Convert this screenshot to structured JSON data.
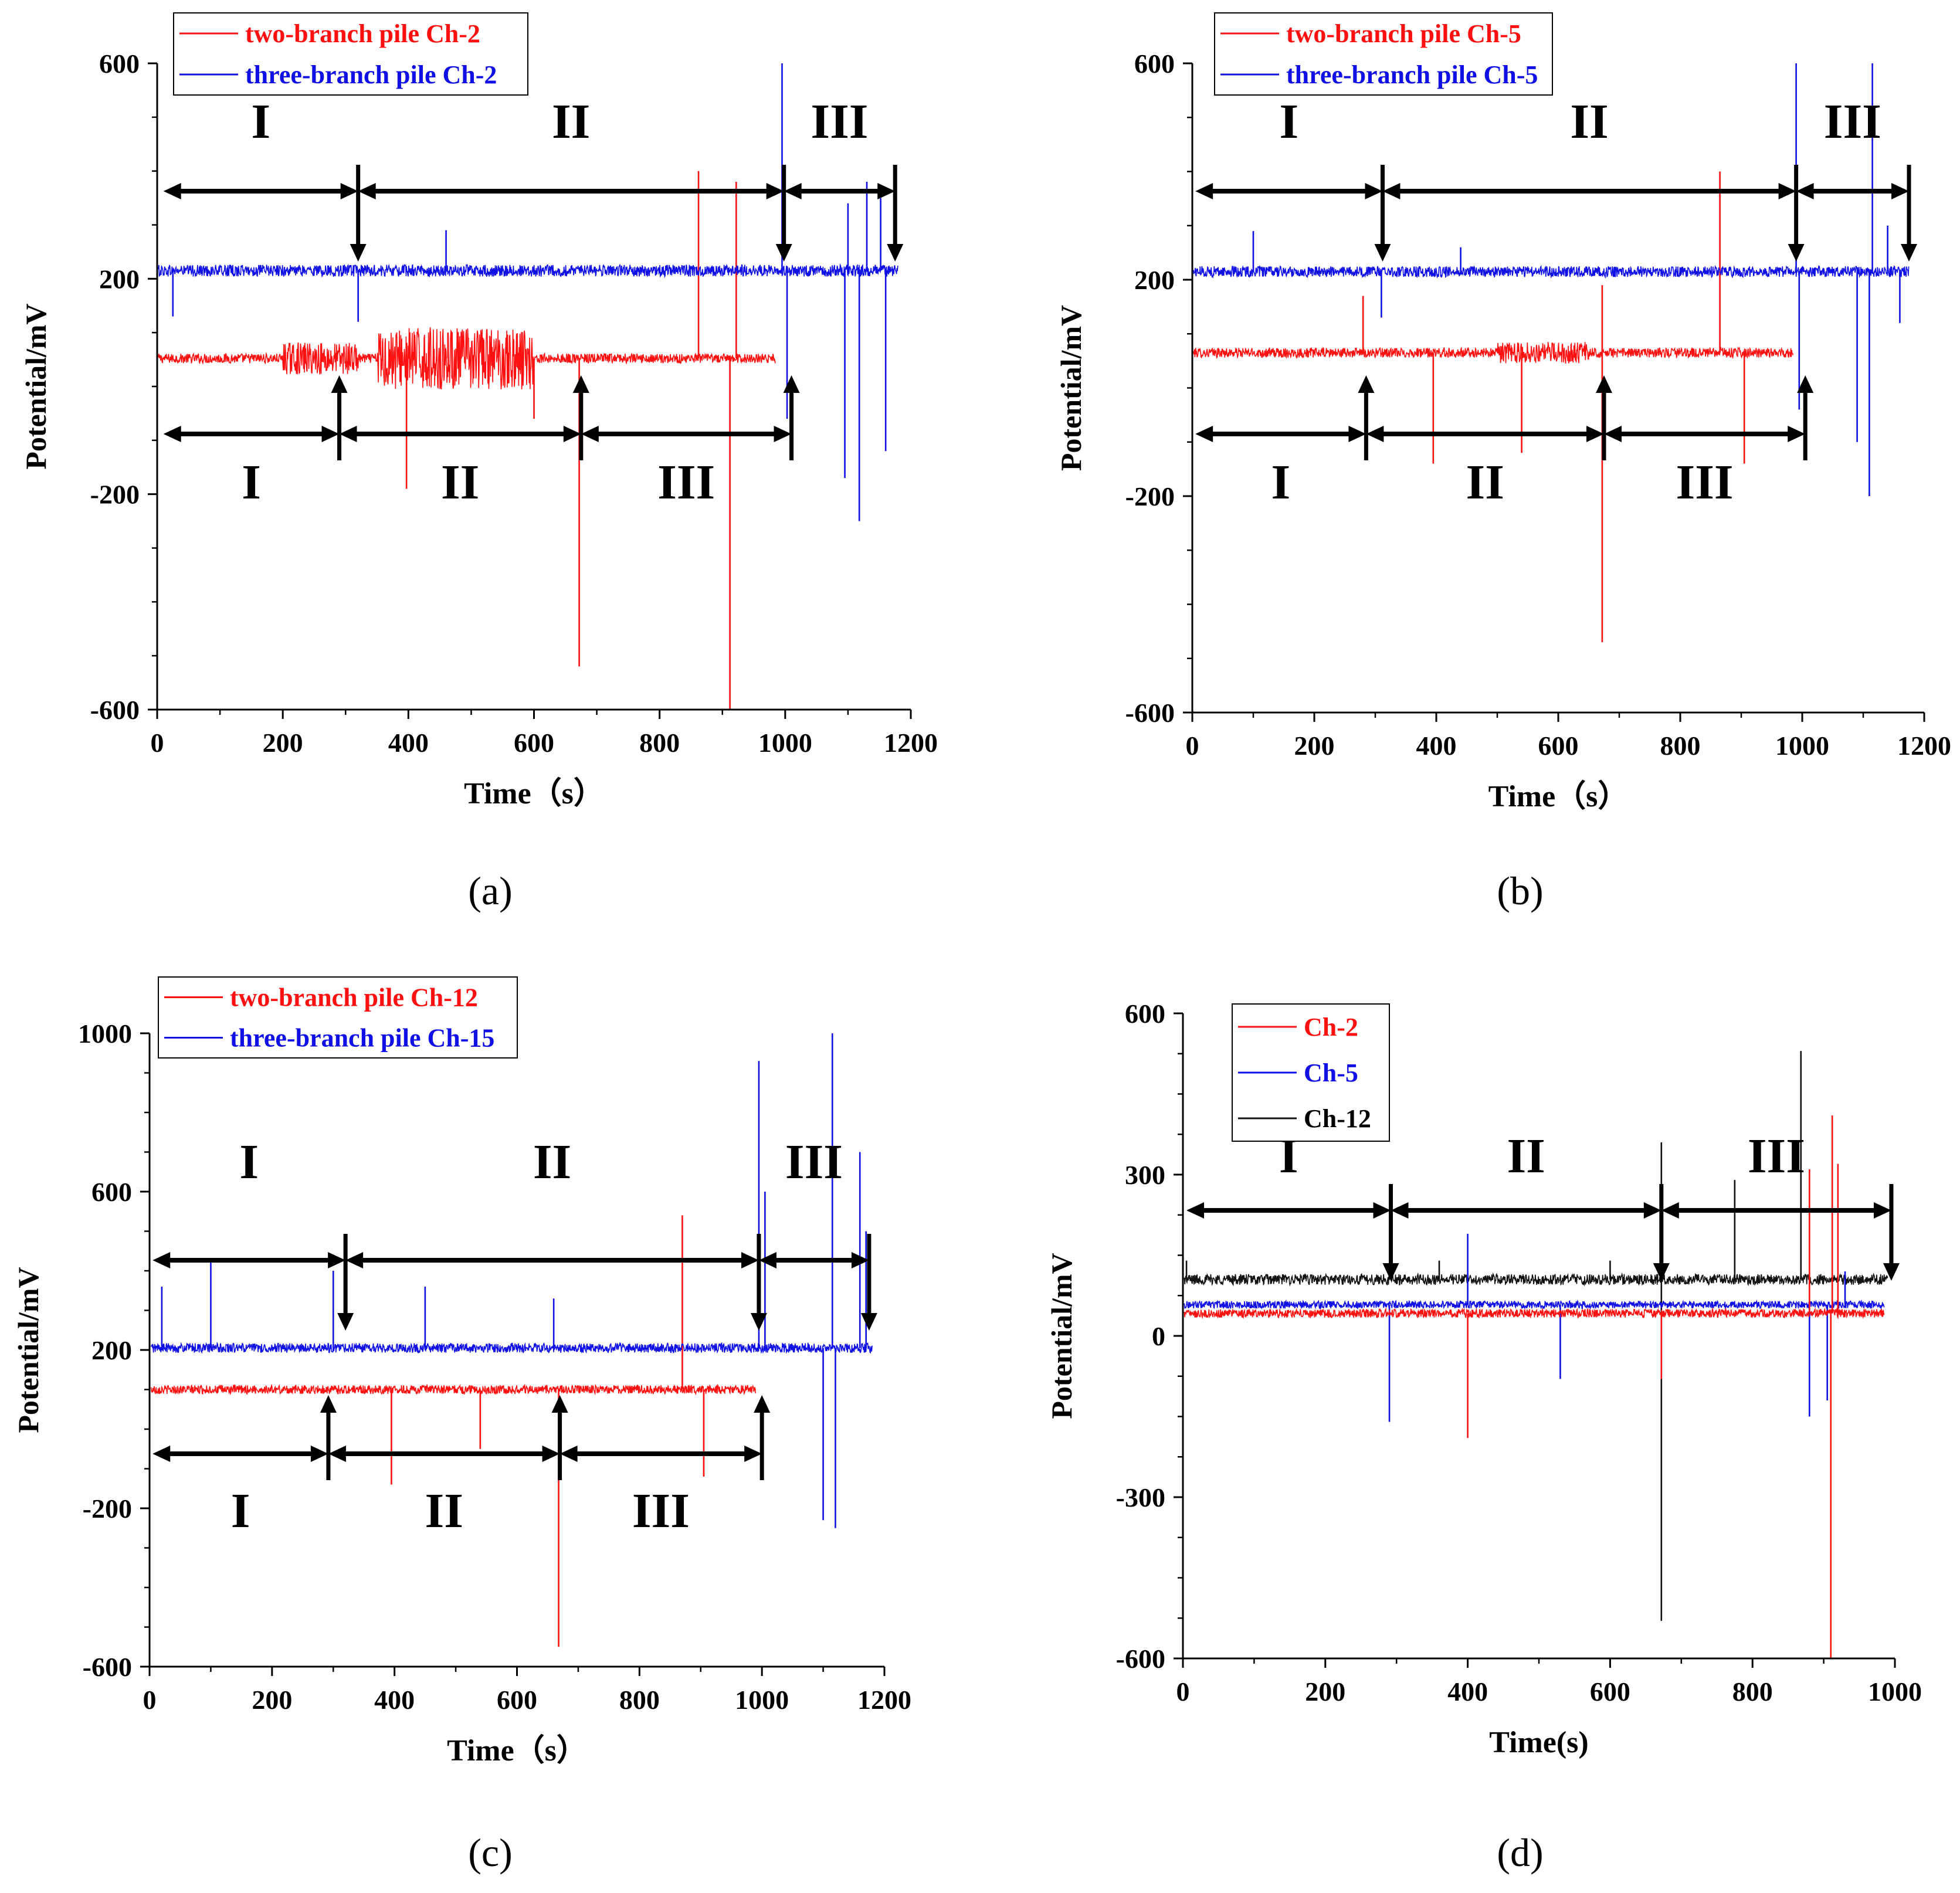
{
  "figure": {
    "captions": [
      "(a)",
      "(b)",
      "(c)",
      "(d)"
    ]
  },
  "chart_data": [
    {
      "id": "a",
      "type": "line",
      "caption": "(a)",
      "xlabel": "Time（s）",
      "ylabel": "Potential/mV",
      "xlim": [
        0,
        1200
      ],
      "ylim": [
        -600,
        600
      ],
      "xticks": [
        0,
        200,
        400,
        600,
        800,
        1000,
        1200
      ],
      "yticks": [
        -600,
        -200,
        200,
        600
      ],
      "legend": "top-left",
      "series": [
        {
          "name": "two-branch pile Ch-2",
          "color": "#ff1010",
          "x_end": 985,
          "baseline": 52,
          "noise": 9,
          "bursts": [
            {
              "from": 200,
              "to": 320,
              "amp": 30
            },
            {
              "from": 350,
              "to": 600,
              "amp": 58
            }
          ],
          "spikes": [
            [
              397,
              -190
            ],
            [
              463,
              100
            ],
            [
              600,
              -60
            ],
            [
              672,
              -520
            ],
            [
              862,
              400
            ],
            [
              912,
              -600
            ],
            [
              922,
              380
            ]
          ]
        },
        {
          "name": "three-branch pile Ch-2",
          "color": "#1010e6",
          "x_end": 1180,
          "baseline": 215,
          "noise": 11,
          "bursts": [],
          "spikes": [
            [
              25,
              130
            ],
            [
              320,
              120
            ],
            [
              460,
              290
            ],
            [
              995,
              600
            ],
            [
              1003,
              -60
            ],
            [
              1095,
              -170
            ],
            [
              1100,
              340
            ],
            [
              1118,
              -250
            ],
            [
              1130,
              380
            ],
            [
              1152,
              350
            ],
            [
              1160,
              -120
            ]
          ]
        }
      ],
      "annotations": {
        "top_stages": [
          {
            "label": "I",
            "from": 10,
            "to": 320
          },
          {
            "label": "II",
            "from": 320,
            "to": 998
          },
          {
            "label": "III",
            "from": 998,
            "to": 1175
          }
        ],
        "bottom_stages": [
          {
            "label": "I",
            "from": 10,
            "to": 290
          },
          {
            "label": "II",
            "from": 290,
            "to": 675
          },
          {
            "label": "III",
            "from": 675,
            "to": 1010
          }
        ]
      }
    },
    {
      "id": "b",
      "type": "line",
      "caption": "(b)",
      "xlabel": "Time（s）",
      "ylabel": "Potential/mV",
      "xlim": [
        0,
        1200
      ],
      "ylim": [
        -600,
        600
      ],
      "xticks": [
        0,
        200,
        400,
        600,
        800,
        1000,
        1200
      ],
      "yticks": [
        -600,
        -200,
        200,
        600
      ],
      "legend": "top-left",
      "series": [
        {
          "name": "two-branch pile Ch-5",
          "color": "#ff1010",
          "x_end": 985,
          "baseline": 65,
          "noise": 9,
          "bursts": [
            {
              "from": 500,
              "to": 650,
              "amp": 20
            }
          ],
          "spikes": [
            [
              280,
              170
            ],
            [
              395,
              -140
            ],
            [
              540,
              -120
            ],
            [
              672,
              -470
            ],
            [
              672,
              190
            ],
            [
              865,
              400
            ],
            [
              905,
              -140
            ]
          ]
        },
        {
          "name": "three-branch pile Ch-5",
          "color": "#1010e6",
          "x_end": 1175,
          "baseline": 215,
          "noise": 10,
          "bursts": [],
          "spikes": [
            [
              100,
              290
            ],
            [
              310,
              130
            ],
            [
              440,
              260
            ],
            [
              990,
              600
            ],
            [
              995,
              -40
            ],
            [
              1090,
              -100
            ],
            [
              1110,
              -200
            ],
            [
              1115,
              600
            ],
            [
              1140,
              300
            ],
            [
              1160,
              120
            ]
          ]
        }
      ],
      "annotations": {
        "top_stages": [
          {
            "label": "I",
            "from": 5,
            "to": 312
          },
          {
            "label": "II",
            "from": 312,
            "to": 990
          },
          {
            "label": "III",
            "from": 990,
            "to": 1175
          }
        ],
        "bottom_stages": [
          {
            "label": "I",
            "from": 5,
            "to": 285
          },
          {
            "label": "II",
            "from": 285,
            "to": 675
          },
          {
            "label": "III",
            "from": 675,
            "to": 1005
          }
        ]
      }
    },
    {
      "id": "c",
      "type": "line",
      "caption": "(c)",
      "xlabel": "Time（s）",
      "ylabel": "Potential/mV",
      "xlim": [
        0,
        1200
      ],
      "ylim": [
        -600,
        1000
      ],
      "xticks": [
        0,
        200,
        400,
        600,
        800,
        1000,
        1200
      ],
      "yticks": [
        -600,
        -200,
        200,
        600,
        1000
      ],
      "legend": "top-left",
      "series": [
        {
          "name": "two-branch pile Ch-12",
          "color": "#ff1010",
          "x_end": 990,
          "baseline": 100,
          "noise": 11,
          "bursts": [],
          "spikes": [
            [
              395,
              -140
            ],
            [
              540,
              -50
            ],
            [
              668,
              -550
            ],
            [
              870,
              540
            ],
            [
              905,
              -120
            ]
          ]
        },
        {
          "name": "three-branch pile Ch-15",
          "color": "#1010e6",
          "x_end": 1180,
          "baseline": 205,
          "noise": 12,
          "bursts": [],
          "spikes": [
            [
              20,
              360
            ],
            [
              100,
              430
            ],
            [
              300,
              400
            ],
            [
              450,
              360
            ],
            [
              660,
              330
            ],
            [
              995,
              930
            ],
            [
              1005,
              600
            ],
            [
              1100,
              -230
            ],
            [
              1115,
              1000
            ],
            [
              1120,
              -250
            ],
            [
              1160,
              700
            ],
            [
              1170,
              500
            ]
          ]
        }
      ],
      "annotations": {
        "top_stages": [
          {
            "label": "I",
            "from": 5,
            "to": 320
          },
          {
            "label": "II",
            "from": 320,
            "to": 995
          },
          {
            "label": "III",
            "from": 995,
            "to": 1175
          }
        ],
        "bottom_stages": [
          {
            "label": "I",
            "from": 5,
            "to": 292
          },
          {
            "label": "II",
            "from": 292,
            "to": 670
          },
          {
            "label": "III",
            "from": 670,
            "to": 1000
          }
        ]
      }
    },
    {
      "id": "d",
      "type": "line",
      "caption": "(d)",
      "xlabel": "Time(s)",
      "ylabel": "Potential/mV",
      "xlim": [
        0,
        1000
      ],
      "ylim": [
        -600,
        600
      ],
      "xticks": [
        0,
        200,
        400,
        600,
        800,
        1000
      ],
      "yticks": [
        -600,
        -300,
        0,
        300,
        600
      ],
      "legend": "top-left",
      "series": [
        {
          "name": "Ch-12",
          "color": "#111111",
          "x_end": 990,
          "baseline": 105,
          "noise": 10,
          "bursts": [],
          "spikes": [
            [
              5,
              140
            ],
            [
              360,
              140
            ],
            [
              600,
              140
            ],
            [
              672,
              -530
            ],
            [
              672,
              360
            ],
            [
              775,
              290
            ],
            [
              868,
              530
            ]
          ]
        },
        {
          "name": "Ch-5",
          "color": "#1010e6",
          "x_end": 985,
          "baseline": 58,
          "noise": 7,
          "bursts": [],
          "spikes": [
            [
              290,
              -160
            ],
            [
              400,
              190
            ],
            [
              530,
              -80
            ],
            [
              880,
              -150
            ],
            [
              905,
              -120
            ],
            [
              930,
              120
            ]
          ]
        },
        {
          "name": "Ch-2",
          "color": "#ff1010",
          "x_end": 985,
          "baseline": 42,
          "noise": 8,
          "bursts": [],
          "spikes": [
            [
              400,
              -190
            ],
            [
              672,
              -80
            ],
            [
              880,
              310
            ],
            [
              910,
              -600
            ],
            [
              912,
              410
            ],
            [
              920,
              320
            ]
          ]
        }
      ],
      "annotations": {
        "top_stages": [
          {
            "label": "I",
            "from": 5,
            "to": 292
          },
          {
            "label": "II",
            "from": 292,
            "to": 672
          },
          {
            "label": "III",
            "from": 672,
            "to": 995
          }
        ],
        "bottom_stages": []
      }
    }
  ]
}
